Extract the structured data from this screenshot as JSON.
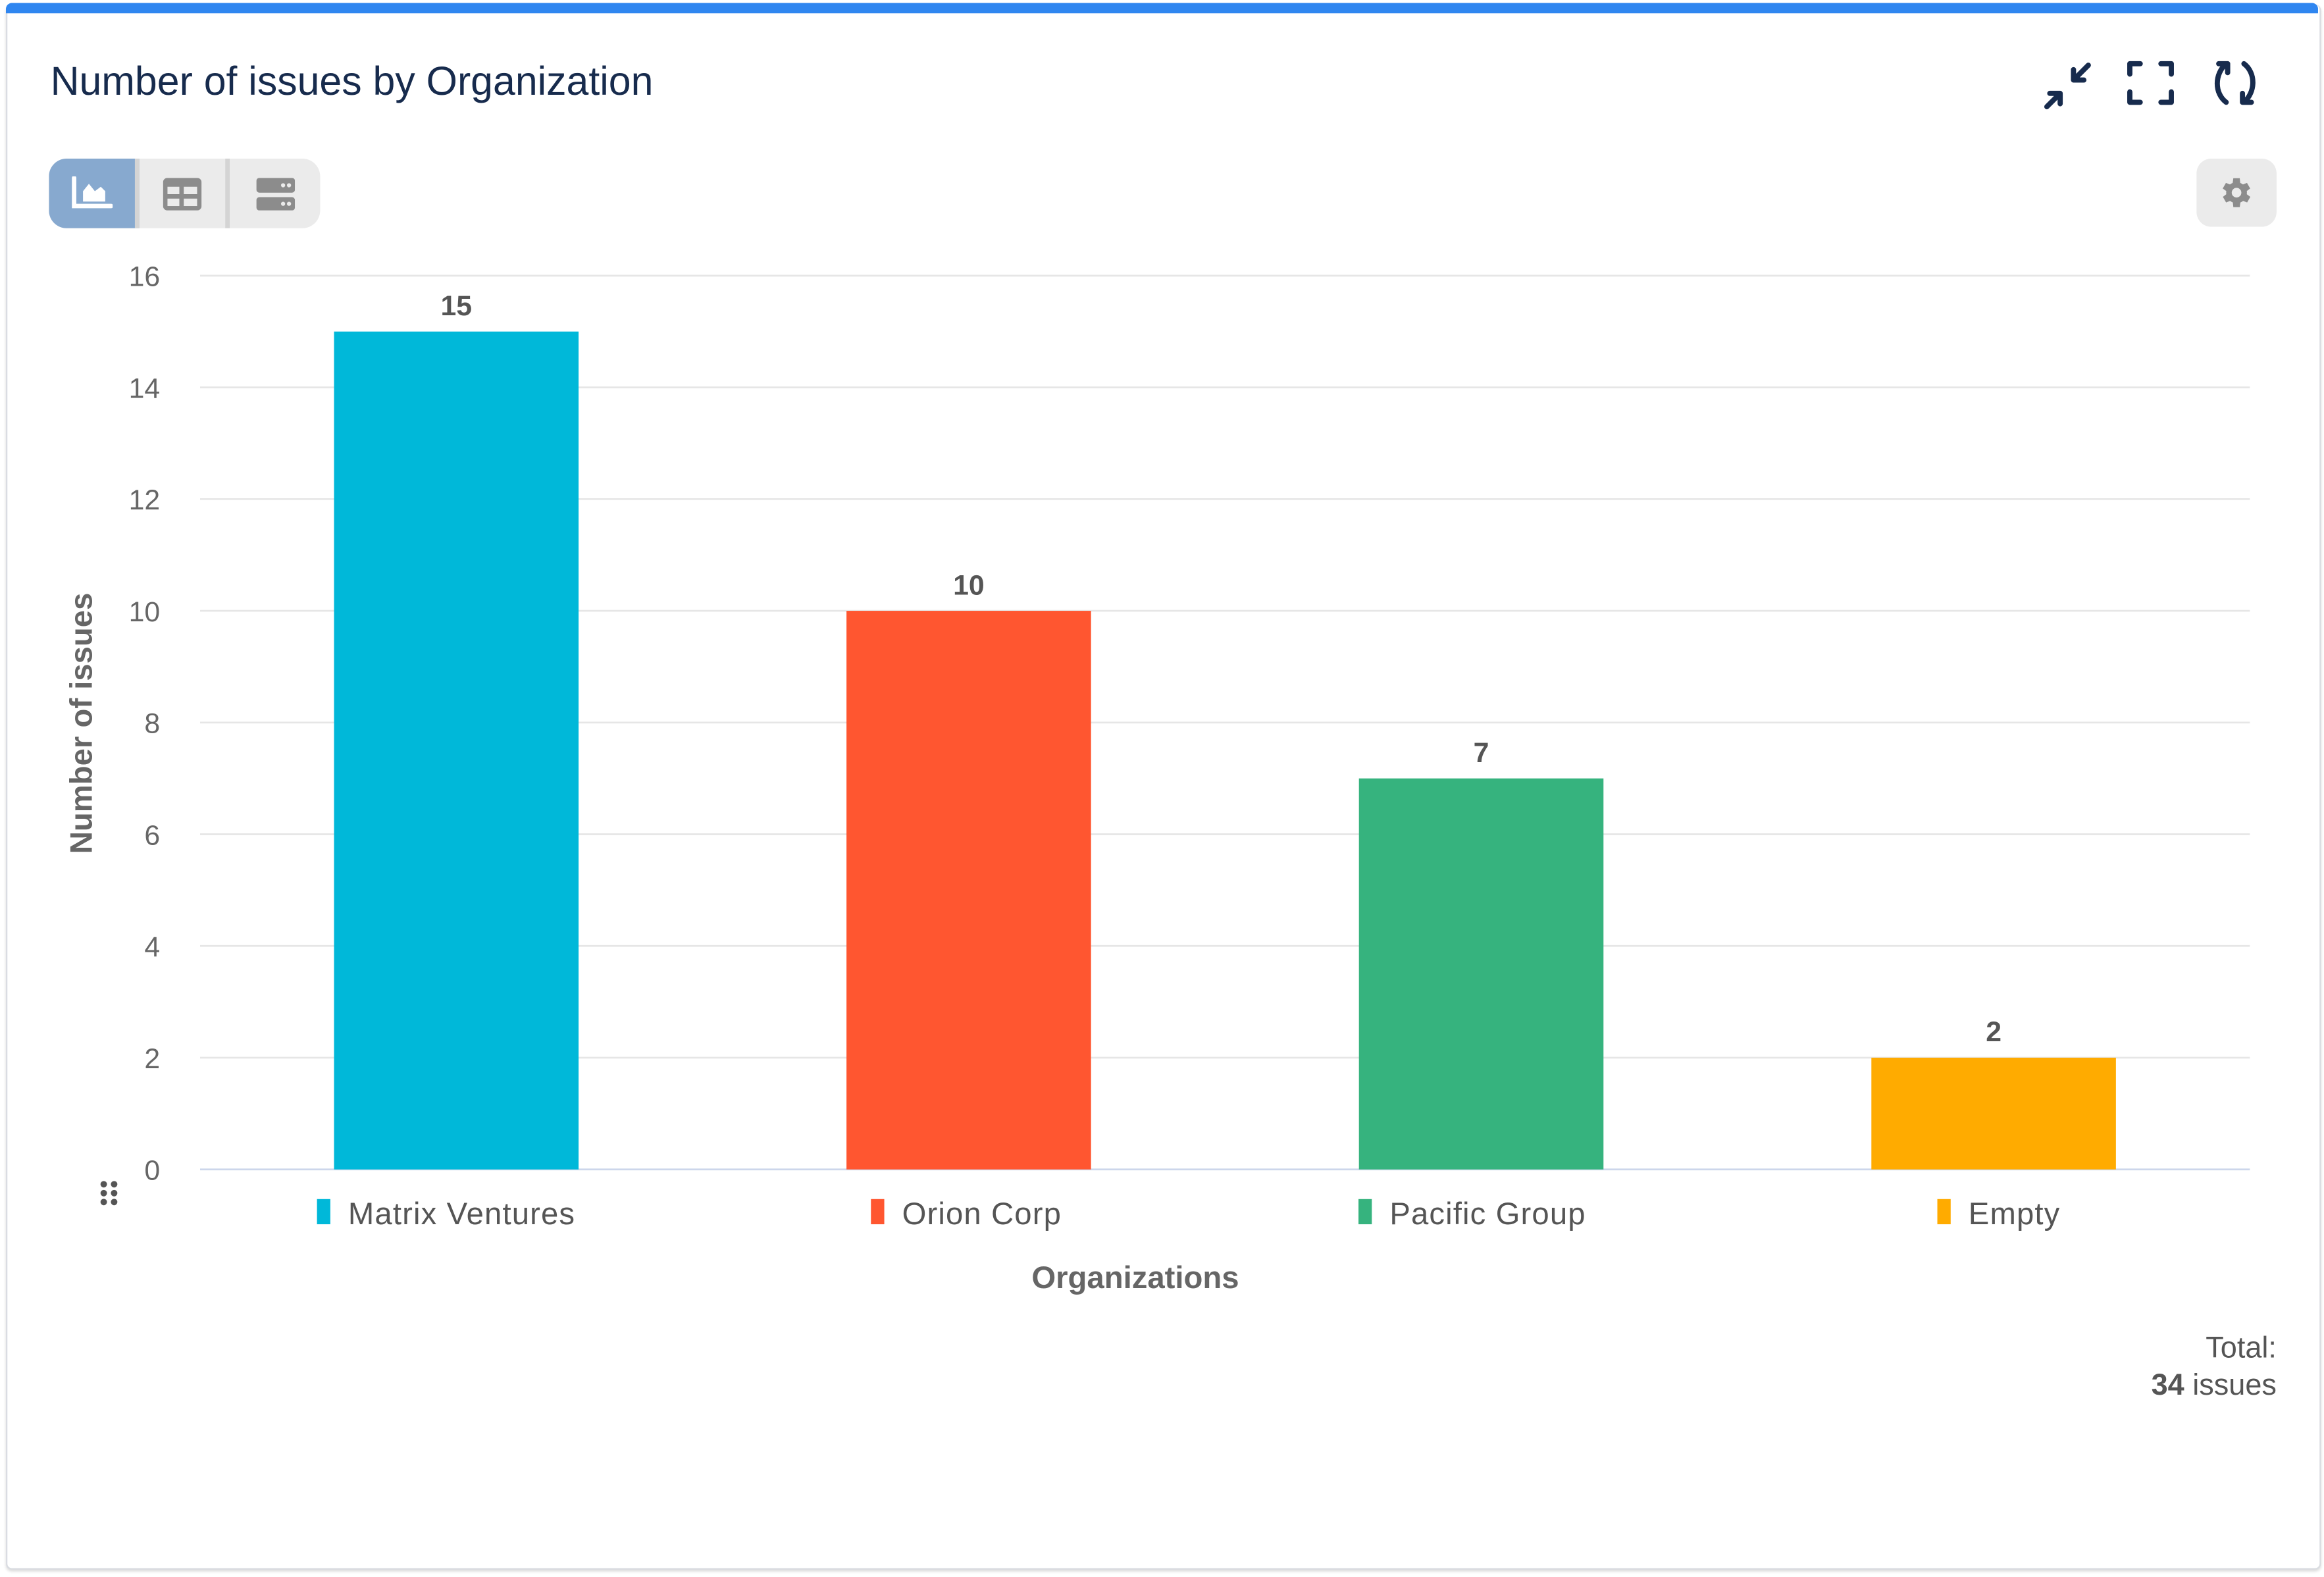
{
  "header": {
    "title": "Number of issues by Organization",
    "icons": [
      "collapse-icon",
      "fullscreen-icon",
      "refresh-icon"
    ]
  },
  "view_toggle": {
    "options": [
      "chart-view",
      "table-view",
      "list-view"
    ],
    "active": "chart-view",
    "active_color": "#87a9cf"
  },
  "settings": {
    "icon": "gear-icon"
  },
  "chart_data": {
    "type": "bar",
    "title": "",
    "categories": [
      "Matrix Ventures",
      "Orion Corp",
      "Pacific Group",
      "Empty"
    ],
    "values": [
      15,
      10,
      7,
      2
    ],
    "colors": [
      "#00b8d9",
      "#ff5630",
      "#36b37e",
      "#ffab00"
    ],
    "xlabel": "Organizations",
    "ylabel": "Number of issues",
    "ylim": [
      0,
      16
    ],
    "yticks": [
      0,
      2,
      4,
      6,
      8,
      10,
      12,
      14,
      16
    ],
    "grid": true,
    "legend": "bottom",
    "data_labels": true
  },
  "total": {
    "label": "Total:",
    "value": "34",
    "unit": "issues"
  }
}
